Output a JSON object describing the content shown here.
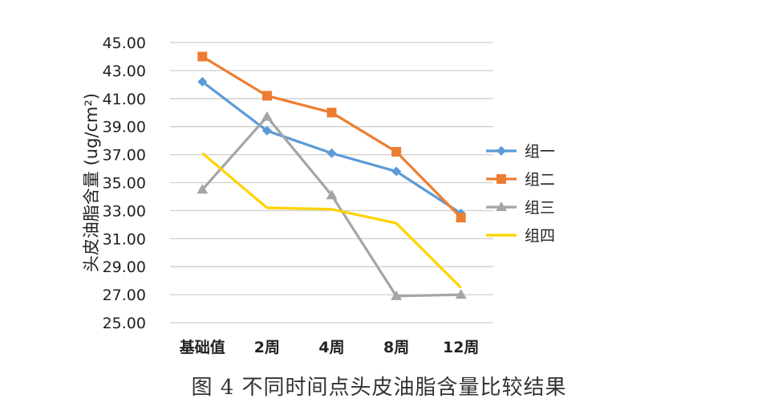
{
  "caption": "图 4  不同时间点头皮油脂含量比较结果",
  "chart_data": {
    "type": "line",
    "ylabel": "头皮油脂含量 (ug/cm²)",
    "xlabel": "",
    "ylim": [
      25,
      45
    ],
    "yticks": [
      "25.00",
      "27.00",
      "29.00",
      "31.00",
      "33.00",
      "35.00",
      "37.00",
      "39.00",
      "41.00",
      "43.00",
      "45.00"
    ],
    "categories": [
      "基础值",
      "2周",
      "4周",
      "8周",
      "12周"
    ],
    "grid": true,
    "legend_position": "right",
    "series": [
      {
        "name": "组一",
        "color": "#5B9BD5",
        "marker": "diamond",
        "values": [
          42.2,
          38.7,
          37.1,
          35.8,
          32.8
        ]
      },
      {
        "name": "组二",
        "color": "#ED7D31",
        "marker": "square",
        "values": [
          44.0,
          41.2,
          40.0,
          37.2,
          32.5
        ]
      },
      {
        "name": "组三",
        "color": "#A5A5A5",
        "marker": "triangle",
        "values": [
          34.5,
          39.7,
          34.1,
          26.9,
          27.0
        ]
      },
      {
        "name": "组四",
        "color": "#FFD200",
        "marker": "none",
        "values": [
          37.1,
          33.2,
          33.1,
          32.1,
          27.5
        ]
      }
    ]
  }
}
